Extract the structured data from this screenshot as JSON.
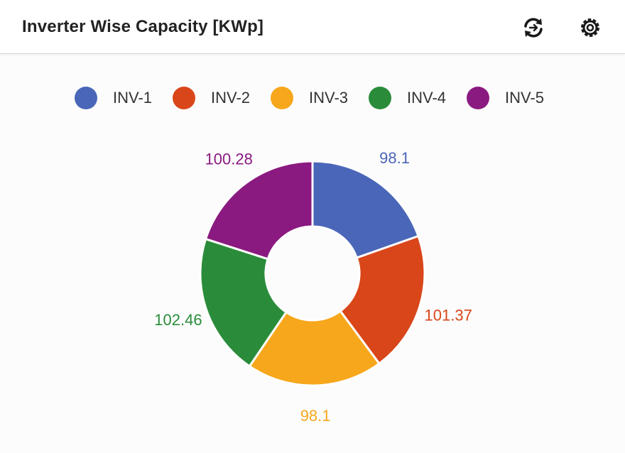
{
  "header": {
    "title": "Inverter Wise Capacity [KWp]",
    "refresh_icon": "refresh-icon",
    "settings_icon": "settings-icon"
  },
  "chart_data": {
    "type": "pie",
    "variant": "donut",
    "title": "Inverter Wise Capacity [KWp]",
    "categories": [
      "INV-1",
      "INV-2",
      "INV-3",
      "INV-4",
      "INV-5"
    ],
    "values": [
      98.1,
      101.37,
      98.1,
      102.46,
      100.28
    ],
    "data_labels": [
      "98.1",
      "101.37",
      "98.1",
      "102.46",
      "100.28"
    ],
    "colors": [
      "#4a66b8",
      "#d9461a",
      "#f7a71b",
      "#2a8c3a",
      "#8a1a80"
    ],
    "legend_position": "top",
    "start_angle": "12 o'clock",
    "direction": "clockwise"
  }
}
